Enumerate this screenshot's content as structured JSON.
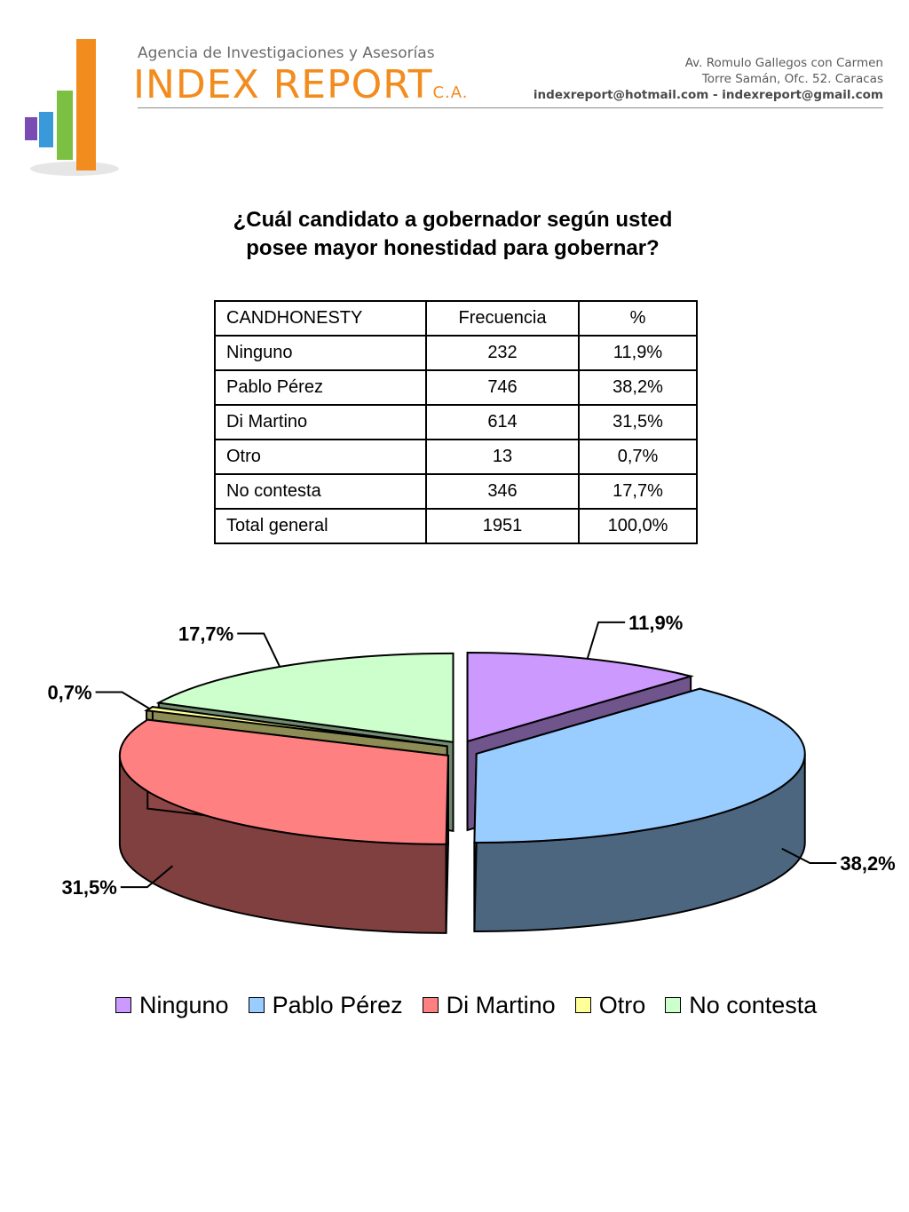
{
  "header": {
    "agency": "Agencia de Investigaciones y Asesorías",
    "brand": "INDEX REPORT",
    "brand_suffix": "C.A.",
    "address_line1": "Av. Romulo Gallegos con Carmen",
    "address_line2": "Torre Samán, Ofc. 52. Caracas",
    "emails": "indexreport@hotmail.com  -  indexreport@gmail.com",
    "logo_bar_colors": [
      "#7a4bb3",
      "#3a9ad9",
      "#7bc043",
      "#f28c1e"
    ]
  },
  "question_line1": "¿Cuál candidato a gobernador según usted",
  "question_line2": "posee mayor honestidad para gobernar?",
  "table": {
    "headers": [
      "CANDHONESTY",
      "Frecuencia",
      "%"
    ],
    "rows": [
      [
        "Ninguno",
        "232",
        "11,9%"
      ],
      [
        "Pablo Pérez",
        "746",
        "38,2%"
      ],
      [
        "Di Martino",
        "614",
        "31,5%"
      ],
      [
        "Otro",
        "13",
        "0,7%"
      ],
      [
        "No contesta",
        "346",
        "17,7%"
      ],
      [
        "Total general",
        "1951",
        "100,0%"
      ]
    ]
  },
  "chart_data": {
    "type": "pie",
    "style": "3d-exploded",
    "categories": [
      "Ninguno",
      "Pablo Pérez",
      "Di Martino",
      "Otro",
      "No contesta"
    ],
    "values": [
      11.9,
      38.2,
      31.5,
      0.7,
      17.7
    ],
    "labels": [
      "11,9%",
      "38,2%",
      "31,5%",
      "0,7%",
      "17,7%"
    ],
    "colors": [
      "#cc99ff",
      "#99ccff",
      "#ff8080",
      "#ffff99",
      "#ccffcc"
    ],
    "legend_position": "bottom"
  }
}
